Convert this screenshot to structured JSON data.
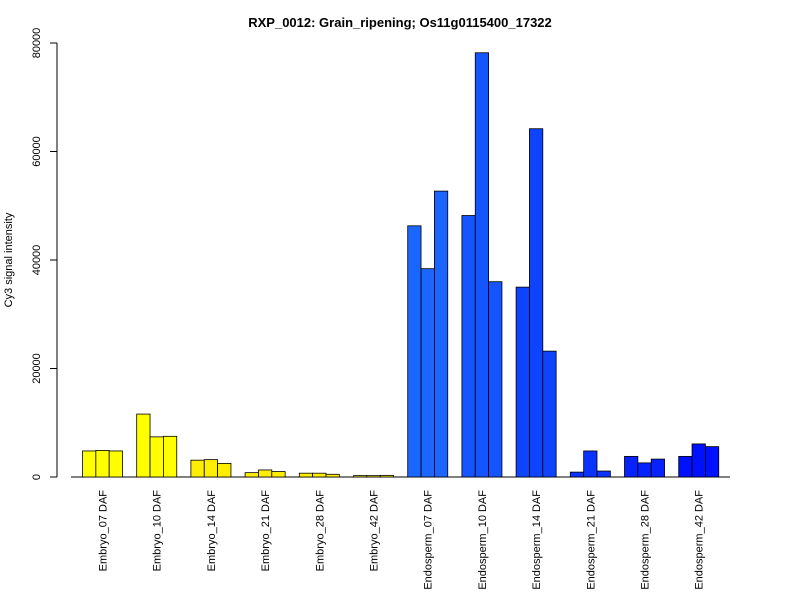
{
  "chart_data": {
    "type": "bar",
    "title": "RXP_0012: Grain_ripening; Os11g0115400_17322",
    "xlabel": "",
    "ylabel": "Cy3 signal intensity",
    "ylim": [
      0,
      80000
    ],
    "yticks": [
      "0",
      "20000",
      "40000",
      "60000",
      "80000"
    ],
    "ytick_values": [
      0,
      20000,
      40000,
      60000,
      80000
    ],
    "grid": false,
    "groups": [
      {
        "label": "Embryo_07 DAF",
        "color": "#FFFF00",
        "values": [
          4800,
          4900,
          4800
        ]
      },
      {
        "label": "Embryo_10 DAF",
        "color": "#FFFF00",
        "values": [
          11600,
          7400,
          7500
        ]
      },
      {
        "label": "Embryo_14 DAF",
        "color": "#FFEE00",
        "values": [
          3100,
          3200,
          2500
        ]
      },
      {
        "label": "Embryo_21 DAF",
        "color": "#FFEE00",
        "values": [
          800,
          1300,
          1000
        ]
      },
      {
        "label": "Embryo_28 DAF",
        "color": "#FFEE00",
        "values": [
          700,
          700,
          500
        ]
      },
      {
        "label": "Embryo_42 DAF",
        "color": "#FFEE00",
        "values": [
          250,
          250,
          300
        ]
      },
      {
        "label": "Endosperm_07 DAF",
        "color": "#1A66FF",
        "values": [
          46300,
          38400,
          52700
        ]
      },
      {
        "label": "Endosperm_10 DAF",
        "color": "#1455FF",
        "values": [
          48200,
          78200,
          36000
        ]
      },
      {
        "label": "Endosperm_14 DAF",
        "color": "#0F44FF",
        "values": [
          35000,
          64200,
          23200
        ]
      },
      {
        "label": "Endosperm_21 DAF",
        "color": "#0A33FF",
        "values": [
          900,
          4800,
          1100
        ]
      },
      {
        "label": "Endosperm_28 DAF",
        "color": "#0522FF",
        "values": [
          3800,
          2600,
          3300
        ]
      },
      {
        "label": "Endosperm_42 DAF",
        "color": "#0011FF",
        "values": [
          3800,
          6100,
          5600
        ]
      }
    ]
  }
}
